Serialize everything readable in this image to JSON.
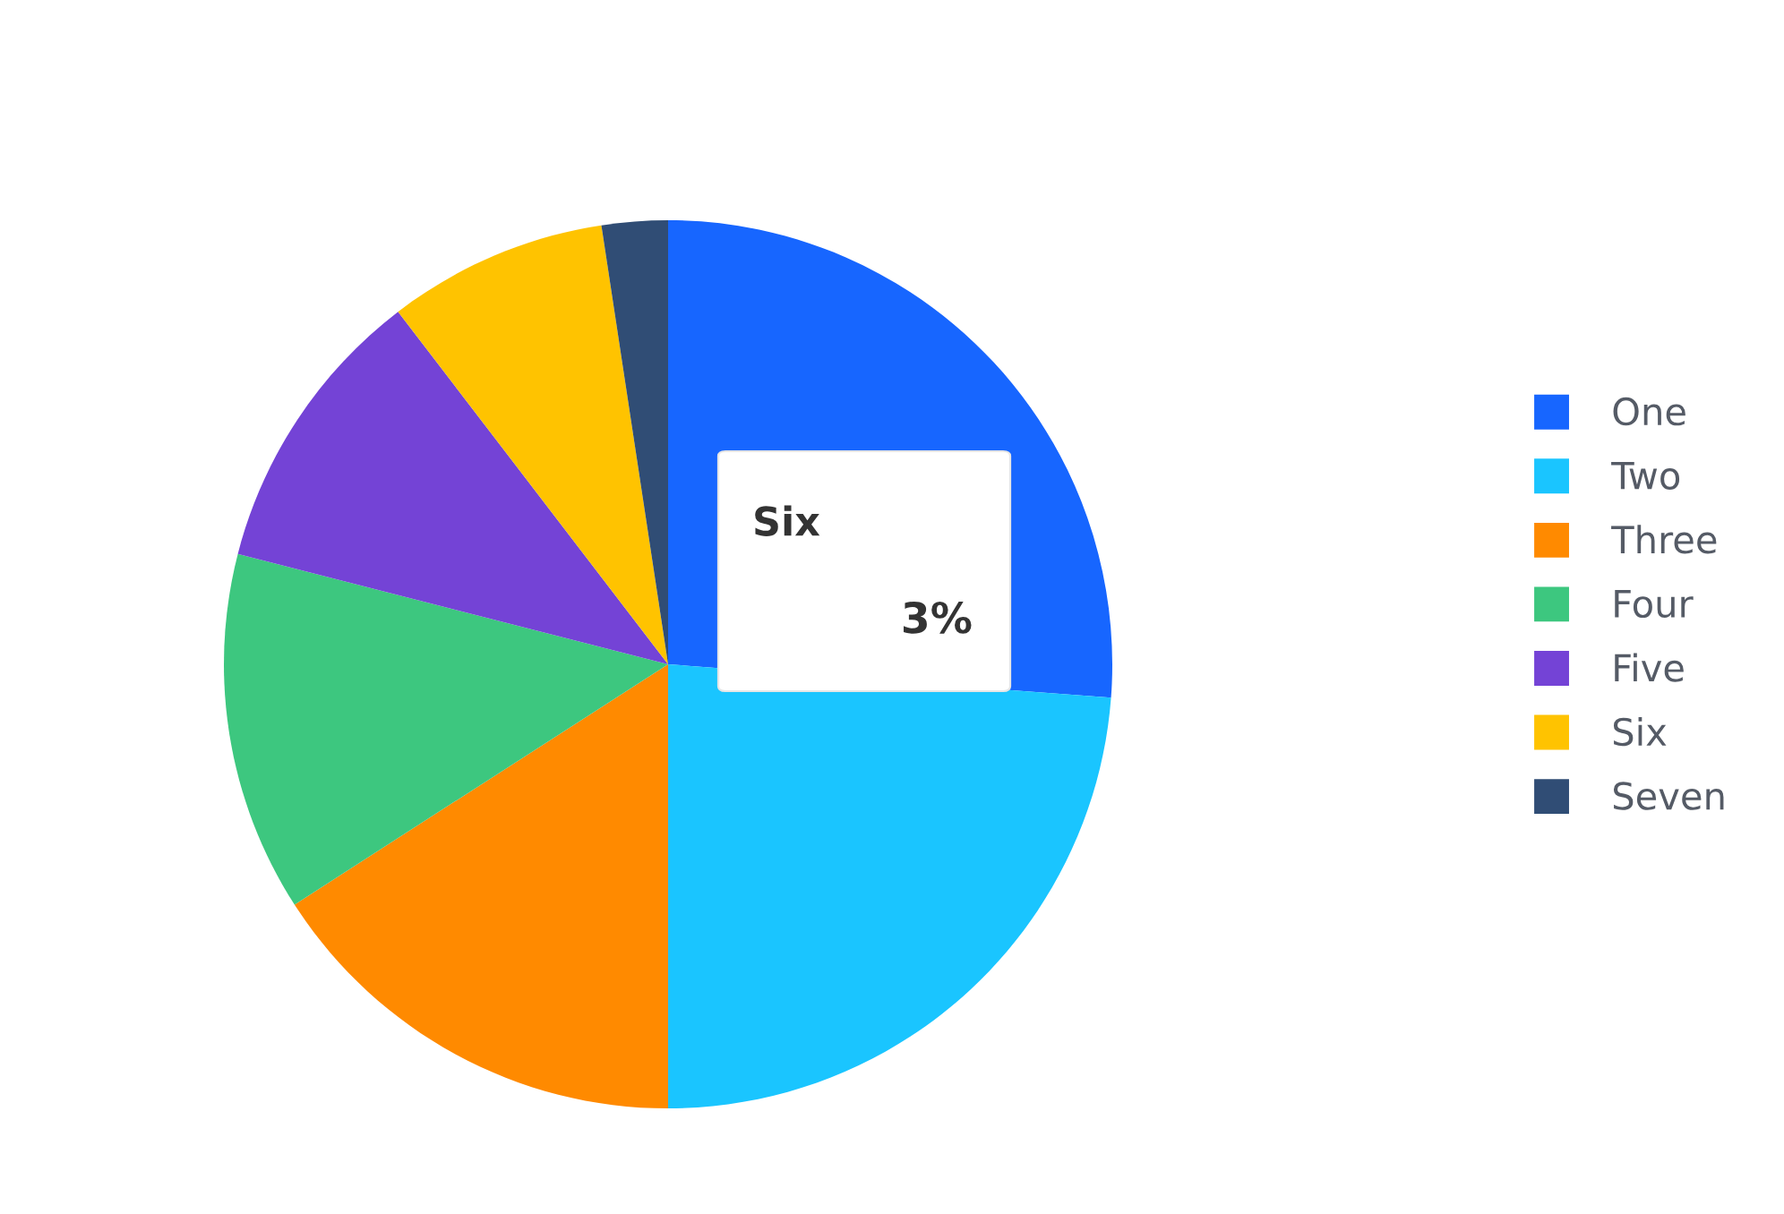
{
  "chart_data": {
    "type": "pie",
    "categories": [
      "One",
      "Two",
      "Three",
      "Four",
      "Five",
      "Six",
      "Seven"
    ],
    "values": [
      26.2,
      23.8,
      15.9,
      13.1,
      10.6,
      8.0,
      2.4
    ],
    "colors": [
      "#1766ff",
      "#1ac5ff",
      "#ff8a00",
      "#3dc77f",
      "#7443d6",
      "#ffc300",
      "#304d75"
    ],
    "legend": "right",
    "annotations": [
      "Six",
      "3%"
    ]
  }
}
